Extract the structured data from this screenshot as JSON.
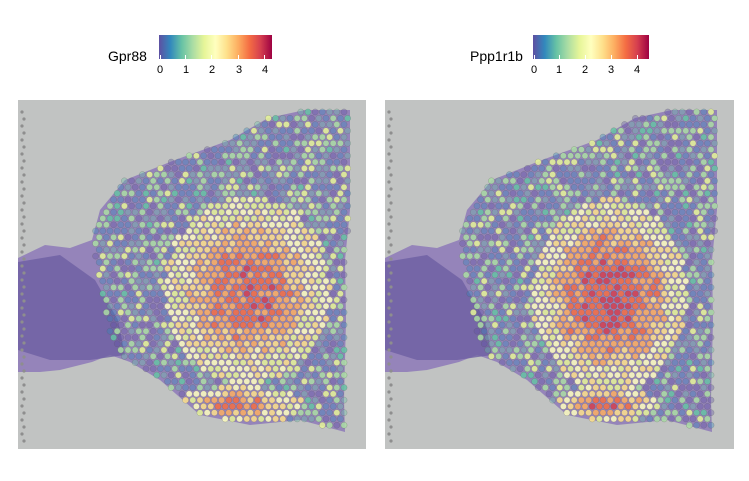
{
  "panels": [
    {
      "gene": "Gpr88",
      "ticks": [
        "0",
        "1",
        "2",
        "3",
        "4"
      ],
      "hotspots": [
        {
          "cx": 247,
          "cy": 290,
          "rx": 62,
          "ry": 70,
          "level": 3.7
        },
        {
          "cx": 240,
          "cy": 405,
          "rx": 48,
          "ry": 14,
          "level": 3.5
        }
      ]
    },
    {
      "gene": "Ppp1r1b",
      "ticks": [
        "0",
        "1",
        "2",
        "3",
        "4"
      ],
      "hotspots": [
        {
          "cx": 610,
          "cy": 295,
          "rx": 58,
          "ry": 72,
          "level": 3.9
        },
        {
          "cx": 605,
          "cy": 405,
          "rx": 40,
          "ry": 13,
          "level": 3.6
        }
      ]
    }
  ],
  "colormap": [
    "#5E4FA2",
    "#3288BD",
    "#66C2A5",
    "#ABDDA4",
    "#E6F598",
    "#FFFFBF",
    "#FEE08B",
    "#FDAE61",
    "#F46D43",
    "#D53E4F",
    "#9E0142"
  ],
  "scale_max": 4.5
}
